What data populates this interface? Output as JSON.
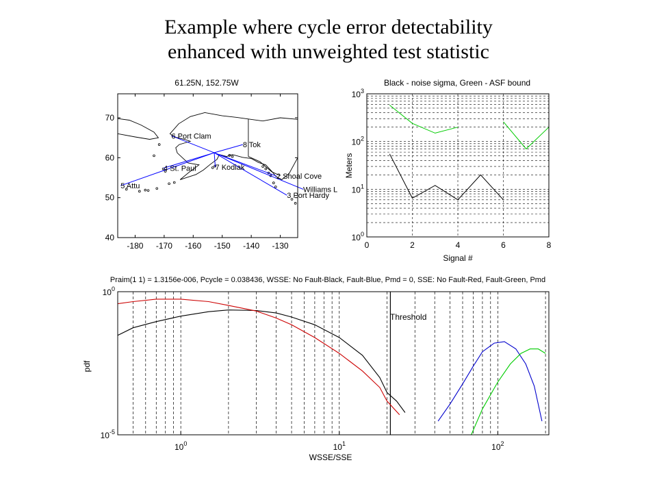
{
  "slide": {
    "title_line1": "Example where cycle error detectability",
    "title_line2": "enhanced with unweighted test statistic"
  },
  "chart_data": [
    {
      "type": "map",
      "title": "61.25N, 152.75W",
      "xlim": [
        -186,
        -124
      ],
      "ylim": [
        40,
        76
      ],
      "xticks": [
        -180,
        -170,
        -160,
        -150,
        -140,
        -130
      ],
      "yticks": [
        40,
        50,
        60,
        70
      ],
      "center": {
        "lon": -152.75,
        "lat": 61.25
      },
      "stations": [
        {
          "label": "5 Attu",
          "lon": -185.0,
          "lat": 53.0
        },
        {
          "label": "4 St. Paul",
          "lon": -170.2,
          "lat": 57.4
        },
        {
          "label": "6 Port Clam",
          "lon": -167.5,
          "lat": 65.5
        },
        {
          "label": "8 Tok",
          "lon": -142.9,
          "lat": 63.3
        },
        {
          "label": "7 Kodiak",
          "lon": -152.4,
          "lat": 57.7
        },
        {
          "label": "2 Shoal Cove",
          "lon": -131.3,
          "lat": 55.4
        },
        {
          "label": "Williams L",
          "lon": -122.1,
          "lat": 52.1
        },
        {
          "label": "3 Port Hardy",
          "lon": -127.7,
          "lat": 50.6
        }
      ],
      "line_color": "#0000ff"
    },
    {
      "type": "line",
      "title": "Black - noise sigma, Green - ASF bound",
      "xlabel": "Signal #",
      "ylabel": "Meters",
      "xlim": [
        0,
        8
      ],
      "ylim": [
        1,
        1000
      ],
      "yscale": "log",
      "xticks": [
        0,
        2,
        4,
        6,
        8
      ],
      "yticks": [
        1,
        10,
        100,
        1000
      ],
      "ytick_labels": [
        {
          "base": "10",
          "exp": "0"
        },
        {
          "base": "10",
          "exp": "1"
        },
        {
          "base": "10",
          "exp": "2"
        },
        {
          "base": "10",
          "exp": "3"
        }
      ],
      "grid": "dashed",
      "series": [
        {
          "name": "noise sigma",
          "color": "#000000",
          "segments": [
            [
              [
                1,
                55
              ],
              [
                2,
                6.5
              ],
              [
                3,
                12
              ],
              [
                4,
                6
              ],
              [
                5,
                20
              ],
              [
                6,
                6
              ]
            ]
          ]
        },
        {
          "name": "ASF bound",
          "color": "#00cc00",
          "segments": [
            [
              [
                1,
                580
              ],
              [
                2,
                240
              ],
              [
                3,
                150
              ],
              [
                4,
                200
              ]
            ],
            [
              [
                6,
                260
              ],
              [
                7,
                70
              ],
              [
                8,
                200
              ]
            ]
          ]
        }
      ]
    },
    {
      "type": "line",
      "title": "Praim(1  1) = 1.3156e-006, Pcycle = 0.038436, WSSE: No Fault-Black, Fault-Blue, Pmd = 0, SSE: No Fault-Red, Fault-Green, Pmd",
      "xlabel": "WSSE/SSE",
      "ylabel": "pdf",
      "xscale": "log",
      "yscale": "log",
      "xlim": [
        0.4,
        210
      ],
      "ylim": [
        1e-05,
        1
      ],
      "xticks": [
        1,
        10,
        100
      ],
      "xtick_labels": [
        {
          "base": "10",
          "exp": "0"
        },
        {
          "base": "10",
          "exp": "1"
        },
        {
          "base": "10",
          "exp": "2"
        }
      ],
      "yticks": [
        1e-05,
        1
      ],
      "ytick_labels": [
        {
          "base": "10",
          "exp": "-5"
        },
        {
          "base": "10",
          "exp": "0"
        }
      ],
      "annotation": "Threshold",
      "threshold_x": 21,
      "vlines_dashed": [
        0.5,
        0.6,
        0.7,
        0.8,
        0.9,
        1,
        2,
        3,
        4,
        5,
        6,
        7,
        8,
        9,
        10,
        20,
        30,
        40,
        50,
        60,
        70,
        80,
        90,
        100,
        200
      ],
      "series": [
        {
          "name": "No Fault (WSSE)",
          "color": "#000000",
          "points": [
            [
              0.4,
              0.03
            ],
            [
              0.5,
              0.055
            ],
            [
              0.7,
              0.09
            ],
            [
              1,
              0.14
            ],
            [
              1.5,
              0.2
            ],
            [
              2,
              0.23
            ],
            [
              3,
              0.22
            ],
            [
              4,
              0.18
            ],
            [
              5,
              0.13
            ],
            [
              7,
              0.07
            ],
            [
              10,
              0.025
            ],
            [
              14,
              0.006
            ],
            [
              18,
              0.001
            ],
            [
              20,
              0.0003
            ],
            [
              23,
              0.00015
            ],
            [
              26,
              6e-05
            ]
          ]
        },
        {
          "name": "No Fault (SSE)",
          "color": "#cc0000",
          "points": [
            [
              0.4,
              0.38
            ],
            [
              0.5,
              0.45
            ],
            [
              0.7,
              0.55
            ],
            [
              1,
              0.55
            ],
            [
              1.5,
              0.45
            ],
            [
              2,
              0.33
            ],
            [
              3,
              0.21
            ],
            [
              4,
              0.12
            ],
            [
              5,
              0.07
            ],
            [
              7,
              0.025
            ],
            [
              10,
              0.007
            ],
            [
              14,
              0.0017
            ],
            [
              18,
              0.00045
            ],
            [
              20,
              0.00015
            ],
            [
              24,
              5e-05
            ]
          ]
        },
        {
          "name": "Fault (WSSE)",
          "color": "#0000cc",
          "points": [
            [
              42,
              3e-05
            ],
            [
              50,
              0.00012
            ],
            [
              60,
              0.0006
            ],
            [
              70,
              0.0025
            ],
            [
              80,
              0.008
            ],
            [
              95,
              0.016
            ],
            [
              110,
              0.018
            ],
            [
              130,
              0.01
            ],
            [
              150,
              0.003
            ],
            [
              170,
              0.0005
            ],
            [
              190,
              3e-05
            ]
          ]
        },
        {
          "name": "Fault (SSE)",
          "color": "#00cc00",
          "points": [
            [
              68,
              1e-05
            ],
            [
              80,
              8e-05
            ],
            [
              100,
              0.0007
            ],
            [
              120,
              0.003
            ],
            [
              140,
              0.007
            ],
            [
              160,
              0.01
            ],
            [
              180,
              0.01
            ],
            [
              200,
              0.007
            ]
          ]
        }
      ]
    }
  ]
}
